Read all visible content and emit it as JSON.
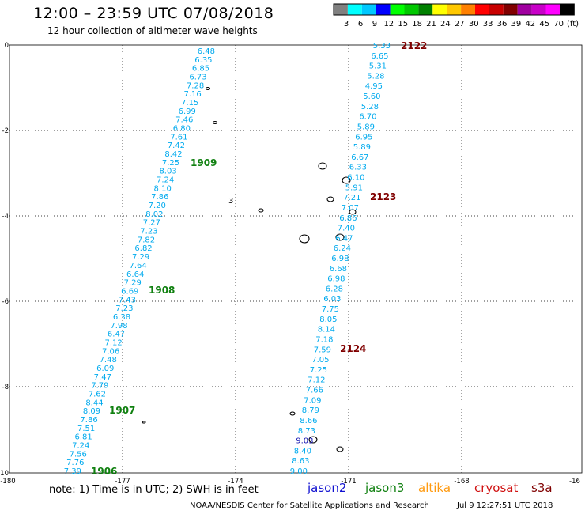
{
  "header": {
    "title": "12:00 – 23:59 UTC 07/08/2018",
    "subtitle": "12 hour collection of altimeter wave heights"
  },
  "colorbar": {
    "colors": [
      "#808080",
      "#00ffff",
      "#00c8ff",
      "#0000ff",
      "#00ff00",
      "#00c800",
      "#008000",
      "#ffff00",
      "#ffc800",
      "#ff8000",
      "#ff0000",
      "#c80000",
      "#800000",
      "#a000a0",
      "#c800c8",
      "#ff00ff",
      "#000000"
    ],
    "labels": [
      "3",
      "6",
      "9",
      "12",
      "15",
      "18",
      "21",
      "24",
      "27",
      "30",
      "33",
      "36",
      "39",
      "42",
      "45",
      "70",
      "(ft)"
    ]
  },
  "map": {
    "lon_ticks": [
      "-180",
      "-177",
      "-174",
      "-171",
      "-168",
      "-16"
    ],
    "lat_ticks": [
      "0",
      "-2",
      "-4",
      "-6",
      "-8",
      "-10"
    ],
    "lat_labels_hidden": [
      "-2",
      "-4",
      "-6",
      "-8"
    ],
    "swh_color": "#00aaee",
    "track_west": {
      "values": [
        "6.48",
        "6.35",
        "6.85",
        "6.73",
        "7.28",
        "7.16",
        "7.15",
        "6.99",
        "7.46",
        "6.80",
        "7.61",
        "7.42",
        "8.42",
        "7.25",
        "8.03",
        "7.24",
        "8.10",
        "7.86",
        "7.20",
        "8.02",
        "7.27",
        "7.23",
        "7.82",
        "6.82",
        "7.29",
        "7.64",
        "6.64",
        "7.29",
        "6.69",
        "7.43",
        "7.23",
        "6.38",
        "7.98",
        "6.47",
        "7.12",
        "7.06",
        "7.48",
        "6.09",
        "7.47",
        "7.79",
        "7.62",
        "8.44",
        "8.09",
        "7.86",
        "7.51",
        "6.81",
        "7.24",
        "7.56",
        "7.76",
        "7.39"
      ]
    },
    "track_east": {
      "values": [
        "5.33",
        "6.65",
        "5.31",
        "5.28",
        "4.95",
        "5.60",
        "5.28",
        "6.70",
        "5.89",
        "6.95",
        "5.89",
        "6.67",
        "6.33",
        "6.10",
        "5.91",
        "7.21",
        "7.07",
        "6.86",
        "7.40",
        "6.47",
        "6.24",
        "6.98",
        "6.68",
        "6.98",
        "6.28",
        "6.03",
        "7.75",
        "8.05",
        "8.14",
        "7.18",
        "7.59",
        "7.05",
        "7.25",
        "7.12",
        "7.66",
        "7.09",
        "8.79",
        "8.66",
        "8.73",
        "9.03",
        "8.40",
        "8.63",
        "9.00"
      ],
      "dark_value_index": 39
    },
    "pass_times_west": [
      "1909",
      "1908",
      "1907",
      "1906"
    ],
    "pass_times_east": [
      "2122",
      "2123",
      "2124"
    ],
    "stray_label": "3"
  },
  "footer": {
    "note": "note:  1) Time is in UTC; 2) SWH is in feet",
    "credit": "NOAA/NESDIS Center for Satellite Applications and Research",
    "timestamp": "Jul  9 12:27:51 UTC 2018",
    "legend": [
      {
        "name": "jason2",
        "color": "#1010d0"
      },
      {
        "name": "jason3",
        "color": "#108010"
      },
      {
        "name": "altika",
        "color": "#ff9a10"
      },
      {
        "name": "cryosat",
        "color": "#d01010"
      },
      {
        "name": "s3a",
        "color": "#800000"
      }
    ]
  }
}
